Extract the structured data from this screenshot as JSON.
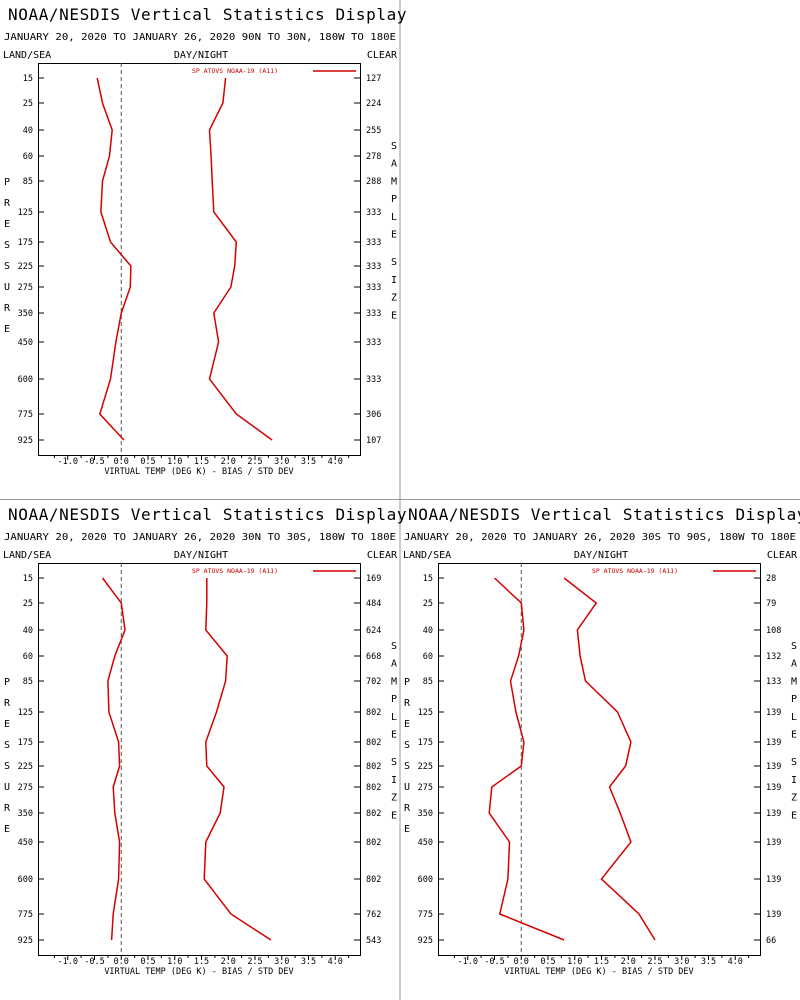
{
  "page": {
    "divider_color": "#999999"
  },
  "chart_data": [
    {
      "type": "line",
      "title": "NOAA/NESDIS Vertical Statistics Display",
      "subtitle": "JANUARY 20, 2020 TO JANUARY 26, 2020 90N TO 30N, 180W TO 180E",
      "header_left": "LAND/SEA",
      "header_center": "DAY/NIGHT",
      "header_right": "CLEAR",
      "xlabel": "VIRTUAL TEMP (DEG K) - BIAS / STD DEV",
      "ylabel": "PRESSURE",
      "y2label": "SAMPLE SIZE",
      "xlim": [
        -1.5,
        4.5
      ],
      "x_ticks": [
        "-1.0",
        "-0.5",
        "0.0",
        "0.5",
        "1.0",
        "1.5",
        "2.0",
        "2.5",
        "3.0",
        "3.5",
        "4.0"
      ],
      "pressure_levels": [
        "15",
        "25",
        "40",
        "60",
        "85",
        "125",
        "175",
        "225",
        "275",
        "350",
        "450",
        "600",
        "775",
        "925"
      ],
      "sample_size": [
        "127",
        "224",
        "255",
        "278",
        "288",
        "333",
        "333",
        "333",
        "333",
        "333",
        "333",
        "333",
        "306",
        "107"
      ],
      "legend": "SP ATOVS NOAA-19 (A11)",
      "line_color": "#d40000",
      "series": [
        {
          "name": "bias",
          "values": [
            -0.45,
            -0.35,
            -0.17,
            -0.22,
            -0.35,
            -0.38,
            -0.2,
            0.18,
            0.17,
            0.0,
            -0.1,
            -0.2,
            -0.4,
            0.05
          ]
        },
        {
          "name": "std_dev",
          "values": [
            1.95,
            1.9,
            1.65,
            1.68,
            1.7,
            1.73,
            2.15,
            2.12,
            2.05,
            1.73,
            1.82,
            1.65,
            2.15,
            2.82
          ]
        }
      ]
    },
    {
      "type": "line",
      "title": "NOAA/NESDIS Vertical Statistics Display",
      "subtitle": "JANUARY 20, 2020 TO JANUARY 26, 2020 30N TO 30S, 180W TO 180E",
      "header_left": "LAND/SEA",
      "header_center": "DAY/NIGHT",
      "header_right": "CLEAR",
      "xlabel": "VIRTUAL TEMP (DEG K) - BIAS / STD DEV",
      "ylabel": "PRESSURE",
      "y2label": "SAMPLE SIZE",
      "xlim": [
        -1.5,
        4.5
      ],
      "x_ticks": [
        "-1.0",
        "-0.5",
        "0.0",
        "0.5",
        "1.0",
        "1.5",
        "2.0",
        "2.5",
        "3.0",
        "3.5",
        "4.0"
      ],
      "pressure_levels": [
        "15",
        "25",
        "40",
        "60",
        "85",
        "125",
        "175",
        "225",
        "275",
        "350",
        "450",
        "600",
        "775",
        "925"
      ],
      "sample_size": [
        "169",
        "484",
        "624",
        "668",
        "702",
        "802",
        "802",
        "802",
        "802",
        "802",
        "802",
        "802",
        "762",
        "543"
      ],
      "legend": "SP ATOVS NOAA-19 (A11)",
      "line_color": "#d40000",
      "series": [
        {
          "name": "bias",
          "values": [
            -0.35,
            0.0,
            0.07,
            -0.12,
            -0.25,
            -0.23,
            -0.05,
            -0.03,
            -0.15,
            -0.12,
            -0.03,
            -0.05,
            -0.15,
            -0.18
          ]
        },
        {
          "name": "std_dev",
          "values": [
            1.6,
            1.6,
            1.58,
            1.98,
            1.95,
            1.78,
            1.58,
            1.6,
            1.92,
            1.85,
            1.58,
            1.55,
            2.05,
            2.8
          ]
        }
      ]
    },
    {
      "type": "line",
      "title": "NOAA/NESDIS Vertical Statistics Display",
      "subtitle": "JANUARY 20, 2020 TO JANUARY 26, 2020 30S TO 90S, 180W TO 180E",
      "header_left": "LAND/SEA",
      "header_center": "DAY/NIGHT",
      "header_right": "CLEAR",
      "xlabel": "VIRTUAL TEMP (DEG K) - BIAS / STD DEV",
      "ylabel": "PRESSURE",
      "y2label": "SAMPLE SIZE",
      "xlim": [
        -1.5,
        4.5
      ],
      "x_ticks": [
        "-1.0",
        "-0.5",
        "0.0",
        "0.5",
        "1.0",
        "1.5",
        "2.0",
        "2.5",
        "3.0",
        "3.5",
        "4.0"
      ],
      "pressure_levels": [
        "15",
        "25",
        "40",
        "60",
        "85",
        "125",
        "175",
        "225",
        "275",
        "350",
        "450",
        "600",
        "775",
        "925"
      ],
      "sample_size": [
        "28",
        "79",
        "108",
        "132",
        "133",
        "139",
        "139",
        "139",
        "139",
        "139",
        "139",
        "139",
        "139",
        "66"
      ],
      "legend": "SP ATOVS NOAA-19 (A11)",
      "line_color": "#d40000",
      "series": [
        {
          "name": "bias",
          "values": [
            -0.5,
            0.0,
            0.05,
            -0.05,
            -0.2,
            -0.1,
            0.05,
            0.0,
            -0.55,
            -0.6,
            -0.22,
            -0.25,
            -0.4,
            0.8
          ]
        },
        {
          "name": "std_dev",
          "values": [
            0.8,
            1.4,
            1.05,
            1.1,
            1.2,
            1.8,
            2.05,
            1.95,
            1.65,
            1.85,
            2.05,
            1.5,
            2.2,
            2.5
          ]
        }
      ]
    }
  ]
}
